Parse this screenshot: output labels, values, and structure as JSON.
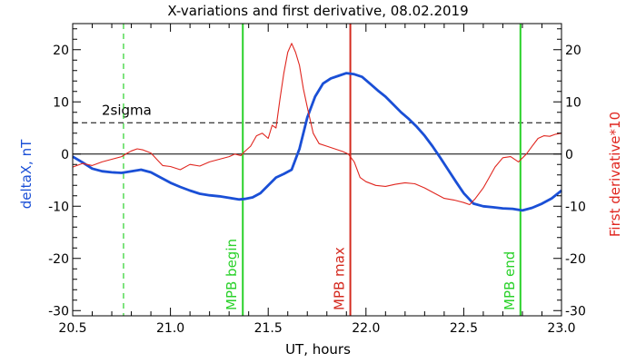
{
  "chart_data": {
    "type": "line",
    "title": "X-variations and first derivative, 08.02.2019",
    "xlabel": "UT, hours",
    "ylabel_left": "deltaX, nT",
    "ylabel_right": "First derivative*10",
    "xlim": [
      20.5,
      23.0
    ],
    "ylim": [
      -31,
      25
    ],
    "x_ticks": [
      "20.5",
      "21.0",
      "21.5",
      "22.0",
      "22.5",
      "23.0"
    ],
    "y_ticks": [
      "-30",
      "-20",
      "-10",
      "0",
      "10",
      "20"
    ],
    "colors": {
      "deltaX": "#1a4fd6",
      "derivative": "#e0261f",
      "mpb_edges": "#2ad12a",
      "mpb_max": "#d42a1f",
      "frame": "#000000"
    },
    "series": [
      {
        "name": "deltaX, nT",
        "x": [
          20.5,
          20.55,
          20.6,
          20.65,
          20.7,
          20.75,
          20.8,
          20.85,
          20.9,
          20.95,
          21.0,
          21.05,
          21.1,
          21.15,
          21.2,
          21.25,
          21.3,
          21.35,
          21.38,
          21.42,
          21.46,
          21.5,
          21.54,
          21.58,
          21.62,
          21.66,
          21.7,
          21.74,
          21.78,
          21.82,
          21.86,
          21.9,
          21.94,
          21.98,
          22.02,
          22.06,
          22.1,
          22.14,
          22.18,
          22.22,
          22.26,
          22.3,
          22.34,
          22.38,
          22.42,
          22.46,
          22.5,
          22.55,
          22.6,
          22.65,
          22.7,
          22.75,
          22.8,
          22.85,
          22.9,
          22.95,
          23.0
        ],
        "y": [
          -0.5,
          -1.6,
          -2.8,
          -3.3,
          -3.5,
          -3.6,
          -3.3,
          -3.0,
          -3.5,
          -4.5,
          -5.5,
          -6.3,
          -7.0,
          -7.6,
          -7.9,
          -8.1,
          -8.4,
          -8.7,
          -8.6,
          -8.3,
          -7.5,
          -6.0,
          -4.5,
          -3.8,
          -3.0,
          1.0,
          7.0,
          11.0,
          13.5,
          14.5,
          15.0,
          15.5,
          15.3,
          14.8,
          13.5,
          12.2,
          11.0,
          9.5,
          8.0,
          6.7,
          5.2,
          3.5,
          1.5,
          -0.7,
          -3.0,
          -5.3,
          -7.5,
          -9.5,
          -10.0,
          -10.2,
          -10.4,
          -10.5,
          -10.8,
          -10.3,
          -9.5,
          -8.5,
          -7.0
        ]
      },
      {
        "name": "First derivative*10",
        "x": [
          20.5,
          20.55,
          20.6,
          20.65,
          20.7,
          20.75,
          20.78,
          20.8,
          20.83,
          20.86,
          20.9,
          20.93,
          20.96,
          21.0,
          21.05,
          21.1,
          21.15,
          21.2,
          21.25,
          21.3,
          21.33,
          21.36,
          21.38,
          21.41,
          21.44,
          21.47,
          21.5,
          21.52,
          21.54,
          21.56,
          21.58,
          21.6,
          21.62,
          21.64,
          21.66,
          21.68,
          21.7,
          21.73,
          21.76,
          21.8,
          21.84,
          21.88,
          21.91,
          21.94,
          21.97,
          22.0,
          22.05,
          22.1,
          22.15,
          22.2,
          22.25,
          22.3,
          22.35,
          22.4,
          22.45,
          22.5,
          22.53,
          22.56,
          22.6,
          22.63,
          22.66,
          22.7,
          22.74,
          22.78,
          22.82,
          22.85,
          22.88,
          22.91,
          22.94,
          22.97,
          23.0
        ],
        "y": [
          -2.5,
          -1.8,
          -2.2,
          -1.5,
          -1.0,
          -0.5,
          0.2,
          0.6,
          1.0,
          0.8,
          0.2,
          -1.0,
          -2.2,
          -2.4,
          -3.0,
          -2.0,
          -2.3,
          -1.5,
          -1.0,
          -0.5,
          0.0,
          -0.3,
          0.5,
          1.5,
          3.5,
          4.0,
          3.0,
          5.5,
          5.0,
          10.5,
          15.5,
          19.5,
          21.2,
          19.5,
          17.0,
          12.5,
          9.0,
          4.0,
          2.0,
          1.5,
          1.0,
          0.5,
          0.0,
          -1.5,
          -4.5,
          -5.3,
          -6.0,
          -6.2,
          -5.8,
          -5.5,
          -5.7,
          -6.5,
          -7.5,
          -8.5,
          -8.8,
          -9.3,
          -9.7,
          -8.5,
          -6.5,
          -4.5,
          -2.5,
          -0.7,
          -0.5,
          -1.5,
          0.0,
          1.5,
          3.0,
          3.5,
          3.4,
          3.8,
          4.0
        ]
      }
    ],
    "reference_lines": [
      {
        "type": "horizontal",
        "y": 6,
        "label": "2sigma",
        "style": "dashed",
        "color": "#000000"
      },
      {
        "type": "horizontal",
        "y": 0,
        "style": "solid",
        "color": "#000000"
      },
      {
        "type": "vertical",
        "x": 20.76,
        "style": "dashed",
        "color": "#2ad12a"
      },
      {
        "type": "vertical",
        "x": 21.37,
        "label": "MPB begin",
        "style": "solid",
        "color": "#2ad12a"
      },
      {
        "type": "vertical",
        "x": 21.92,
        "label": "MPB max",
        "style": "solid",
        "color": "#d42a1f"
      },
      {
        "type": "vertical",
        "x": 22.79,
        "label": "MPB end",
        "style": "solid",
        "color": "#2ad12a"
      }
    ],
    "grid": false,
    "legend": "none"
  }
}
